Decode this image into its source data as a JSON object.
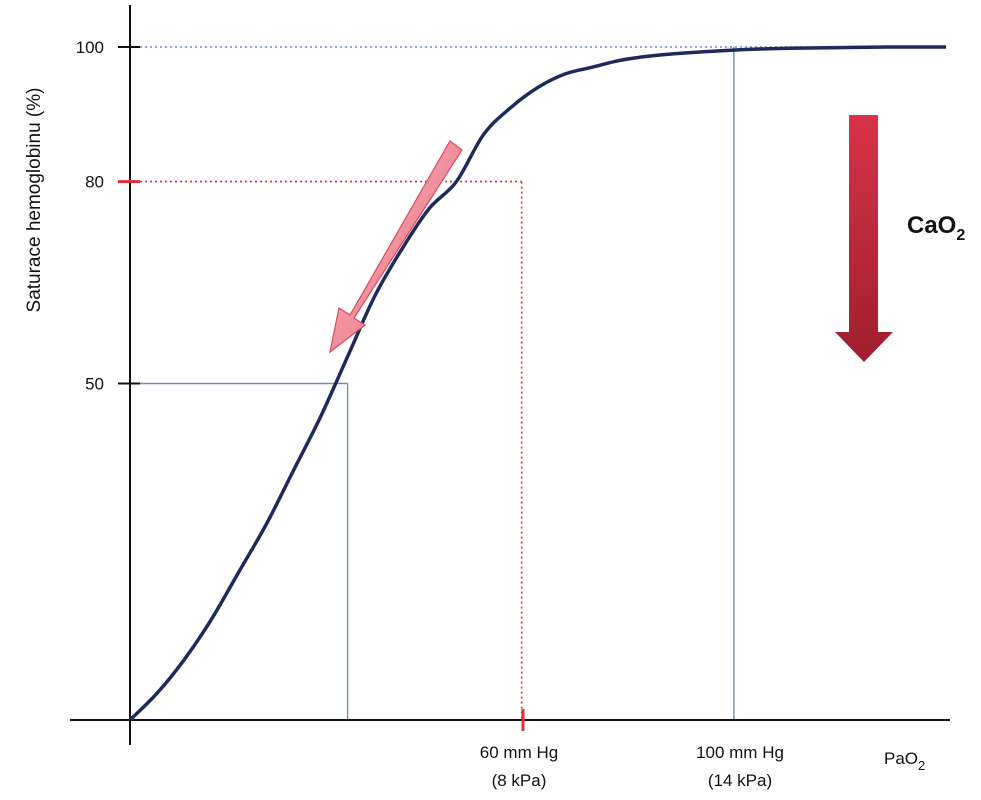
{
  "chart_data": {
    "type": "line",
    "title": "",
    "ylabel": "Saturace hemoglobinu (%)",
    "xlabel": "PaO",
    "xlabel_sub": "2",
    "xlim": [
      0,
      150
    ],
    "ylim": [
      0,
      100
    ],
    "y_ticks": [
      {
        "value": 100,
        "label": "100"
      },
      {
        "value": 80,
        "label": "80"
      },
      {
        "value": 50,
        "label": "50"
      }
    ],
    "x_ticks": [
      {
        "value": 60,
        "line1": "60 mm Hg",
        "line2": "(8 kPa)"
      },
      {
        "value": 100,
        "line1": "100 mm Hg",
        "line2": "(14 kPa)"
      }
    ],
    "series": [
      {
        "x": [
          0,
          5,
          10,
          15,
          20,
          25,
          30,
          35,
          40,
          45,
          50,
          55,
          60,
          65,
          70,
          75,
          80,
          85,
          90,
          95,
          100,
          110,
          120,
          130,
          140,
          150
        ],
        "y": [
          0,
          4,
          9,
          15,
          22,
          29,
          37,
          45,
          54,
          63,
          70,
          76,
          80,
          87,
          91,
          94,
          96,
          97,
          98,
          98.6,
          99,
          99.5,
          99.8,
          99.9,
          100,
          100
        ]
      }
    ],
    "reference_lines": [
      {
        "x": 40,
        "y": 50,
        "style": "solid",
        "color": "#6b90b8"
      },
      {
        "x": 72,
        "y": 80,
        "style": "dotted",
        "color": "#e0303a"
      },
      {
        "x": 111,
        "y": 100,
        "style": "dotted-h-solid-v",
        "color": "#6b90b8"
      }
    ],
    "annotation": {
      "text": "CaO",
      "sub": "2"
    },
    "colors": {
      "curve": "#1e2a5a",
      "blue_guides": "#6b90b8",
      "red_guides": "#e0303a",
      "pink_arrow": "#f08a96",
      "red_arrow": "#b82a3a"
    }
  }
}
